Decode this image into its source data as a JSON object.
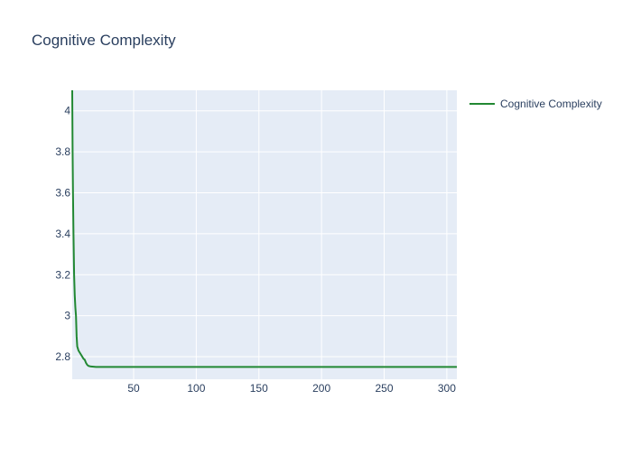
{
  "chart_data": {
    "type": "line",
    "title": "Cognitive Complexity",
    "xlabel": "",
    "ylabel": "",
    "xlim": [
      1,
      308
    ],
    "ylim": [
      2.69,
      4.1
    ],
    "x_ticks": [
      50,
      100,
      150,
      200,
      250,
      300
    ],
    "y_ticks": [
      2.8,
      3,
      3.2,
      3.4,
      3.6,
      3.8,
      4
    ],
    "grid": true,
    "legend_position": "top-right",
    "series": [
      {
        "name": "Cognitive Complexity",
        "color": "#228833",
        "x": [
          1,
          1.3,
          1.6,
          2,
          2.5,
          3,
          3.5,
          4,
          4.5,
          5,
          6,
          7,
          8,
          9,
          10,
          11,
          12,
          13,
          14,
          16,
          20,
          30,
          50,
          100,
          150,
          200,
          250,
          308
        ],
        "y": [
          4.1,
          3.8,
          3.6,
          3.4,
          3.2,
          3.1,
          3.04,
          3.0,
          2.9,
          2.85,
          2.83,
          2.82,
          2.81,
          2.8,
          2.79,
          2.785,
          2.77,
          2.76,
          2.755,
          2.752,
          2.75,
          2.75,
          2.75,
          2.75,
          2.75,
          2.75,
          2.75,
          2.75
        ]
      }
    ]
  }
}
